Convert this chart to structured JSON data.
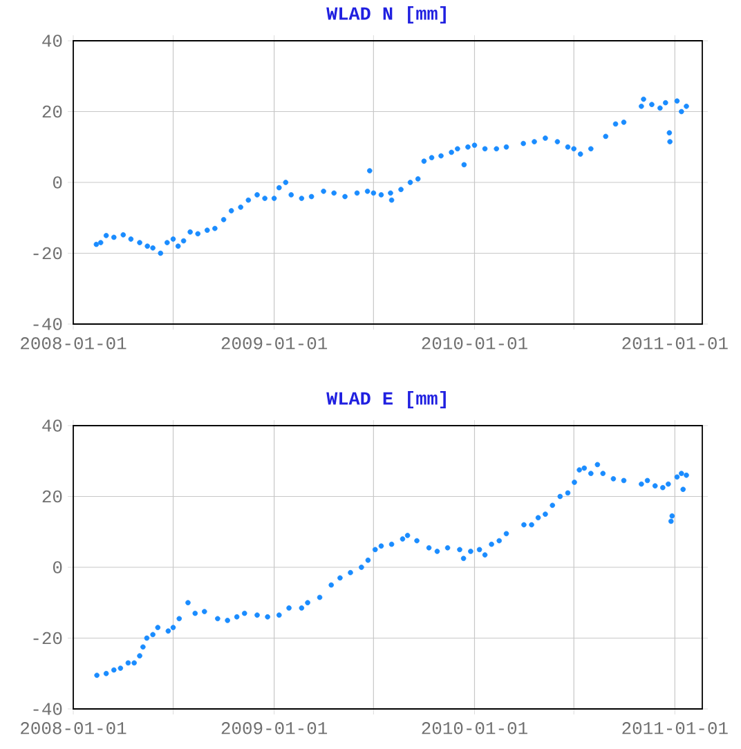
{
  "chart_data": [
    {
      "type": "scatter",
      "title": "WLAD N [mm]",
      "color": "#1a8cff",
      "grid": true,
      "xlim": [
        "2008-01-01",
        "2011-02-20"
      ],
      "ylim": [
        -40,
        40
      ],
      "yticks": [
        -40,
        -20,
        0,
        20,
        40
      ],
      "xticks": [
        "2008-01-01",
        {
          "value": "2008-07-01",
          "label": null
        },
        "2009-01-01",
        {
          "value": "2009-07-01",
          "label": null
        },
        "2010-01-01",
        {
          "value": "2010-07-01",
          "label": null
        },
        "2011-01-01"
      ],
      "x": [
        "2008-02-12",
        "2008-02-20",
        "2008-03-01",
        "2008-03-15",
        "2008-04-01",
        "2008-04-15",
        "2008-05-01",
        "2008-05-15",
        "2008-05-25",
        "2008-06-08",
        "2008-06-20",
        "2008-07-01",
        "2008-07-10",
        "2008-07-20",
        "2008-08-01",
        "2008-08-15",
        "2008-09-01",
        "2008-09-15",
        "2008-10-01",
        "2008-10-15",
        "2008-11-01",
        "2008-11-15",
        "2008-12-01",
        "2008-12-15",
        "2009-01-01",
        "2009-01-10",
        "2009-01-22",
        "2009-02-01",
        "2009-02-20",
        "2009-03-10",
        "2009-04-01",
        "2009-04-20",
        "2009-05-10",
        "2009-06-01",
        "2009-06-20",
        "2009-06-24",
        "2009-07-01",
        "2009-07-15",
        "2009-08-01",
        "2009-08-03",
        "2009-08-20",
        "2009-09-06",
        "2009-09-20",
        "2009-10-01",
        "2009-10-15",
        "2009-11-01",
        "2009-11-20",
        "2009-12-01",
        "2009-12-13",
        "2009-12-20",
        "2010-01-01",
        "2010-01-20",
        "2010-02-10",
        "2010-02-28",
        "2010-03-31",
        "2010-04-20",
        "2010-05-10",
        "2010-06-01",
        "2010-06-20",
        "2010-07-01",
        "2010-07-13",
        "2010-08-01",
        "2010-08-28",
        "2010-09-15",
        "2010-09-30",
        "2010-11-01",
        "2010-11-05",
        "2010-11-20",
        "2010-12-05",
        "2010-12-15",
        "2010-12-22",
        "2010-12-23",
        "2011-01-05",
        "2011-01-13",
        "2011-01-22"
      ],
      "values": [
        -17.5,
        -17,
        -15,
        -15.5,
        -14.8,
        -16,
        -17,
        -18,
        -18.5,
        -20,
        -17,
        -16,
        -18,
        -16.5,
        -14,
        -14.5,
        -13.5,
        -13,
        -10.5,
        -8,
        -7,
        -5,
        -3.5,
        -4.5,
        -4.5,
        -1.5,
        0,
        -3.5,
        -4.5,
        -4,
        -2.5,
        -3,
        -4,
        -3,
        -2.5,
        3.3,
        -3,
        -3.5,
        -3,
        -5,
        -2,
        0,
        1,
        6,
        7,
        7.5,
        8.5,
        9.5,
        5,
        10,
        10.5,
        9.5,
        9.5,
        10,
        11,
        11.5,
        12.5,
        11.5,
        10,
        9.5,
        8,
        9.5,
        13,
        16.5,
        17,
        21.5,
        23.5,
        22,
        21,
        22.5,
        14,
        11.5,
        23,
        20,
        21.5
      ]
    },
    {
      "type": "scatter",
      "title": "WLAD E [mm]",
      "color": "#1a8cff",
      "grid": true,
      "xlim": [
        "2008-01-01",
        "2011-02-20"
      ],
      "ylim": [
        -40,
        40
      ],
      "yticks": [
        -40,
        -20,
        0,
        20,
        40
      ],
      "xticks": [
        "2008-01-01",
        {
          "value": "2008-07-01",
          "label": null
        },
        "2009-01-01",
        {
          "value": "2009-07-01",
          "label": null
        },
        "2010-01-01",
        {
          "value": "2010-07-01",
          "label": null
        },
        "2011-01-01"
      ],
      "x": [
        "2008-02-13",
        "2008-03-01",
        "2008-03-15",
        "2008-03-27",
        "2008-04-10",
        "2008-04-21",
        "2008-05-01",
        "2008-05-07",
        "2008-05-14",
        "2008-05-25",
        "2008-06-03",
        "2008-06-22",
        "2008-07-01",
        "2008-07-12",
        "2008-07-28",
        "2008-08-10",
        "2008-08-27",
        "2008-09-20",
        "2008-10-08",
        "2008-10-25",
        "2008-11-08",
        "2008-12-01",
        "2008-12-20",
        "2009-01-10",
        "2009-01-28",
        "2009-02-20",
        "2009-03-03",
        "2009-03-25",
        "2009-04-15",
        "2009-05-01",
        "2009-05-20",
        "2009-06-09",
        "2009-06-21",
        "2009-07-04",
        "2009-07-15",
        "2009-08-03",
        "2009-08-23",
        "2009-09-01",
        "2009-09-18",
        "2009-10-10",
        "2009-10-25",
        "2009-11-13",
        "2009-12-05",
        "2009-12-12",
        "2009-12-25",
        "2010-01-10",
        "2010-01-20",
        "2010-02-01",
        "2010-02-15",
        "2010-02-28",
        "2010-04-01",
        "2010-04-15",
        "2010-04-27",
        "2010-05-10",
        "2010-05-23",
        "2010-06-06",
        "2010-06-20",
        "2010-07-02",
        "2010-07-11",
        "2010-07-20",
        "2010-08-01",
        "2010-08-13",
        "2010-08-23",
        "2010-09-11",
        "2010-09-30",
        "2010-11-01",
        "2010-11-12",
        "2010-11-26",
        "2010-12-10",
        "2010-12-20",
        "2010-12-25",
        "2010-12-27",
        "2011-01-05",
        "2011-01-13",
        "2011-01-16",
        "2011-01-22"
      ],
      "values": [
        -30.5,
        -30,
        -29,
        -28.5,
        -27,
        -27,
        -25,
        -22.5,
        -20,
        -19,
        -17,
        -18,
        -17,
        -14.5,
        -10,
        -13,
        -12.5,
        -14.5,
        -15,
        -14,
        -13,
        -13.5,
        -14,
        -13.5,
        -11.5,
        -11.5,
        -10,
        -8.5,
        -5,
        -3,
        -1.5,
        0,
        2,
        5,
        6,
        6.5,
        8,
        9,
        7.5,
        5.5,
        4.5,
        5.5,
        5,
        2.5,
        4.5,
        5,
        3.5,
        6.5,
        7.5,
        9.5,
        12,
        12,
        14,
        15,
        17.5,
        20,
        21,
        24,
        27.5,
        28,
        26.5,
        29,
        26.5,
        25,
        24.5,
        23.5,
        24.5,
        23,
        22.5,
        23.5,
        13,
        14.5,
        25.5,
        26.5,
        22,
        26
      ]
    }
  ]
}
